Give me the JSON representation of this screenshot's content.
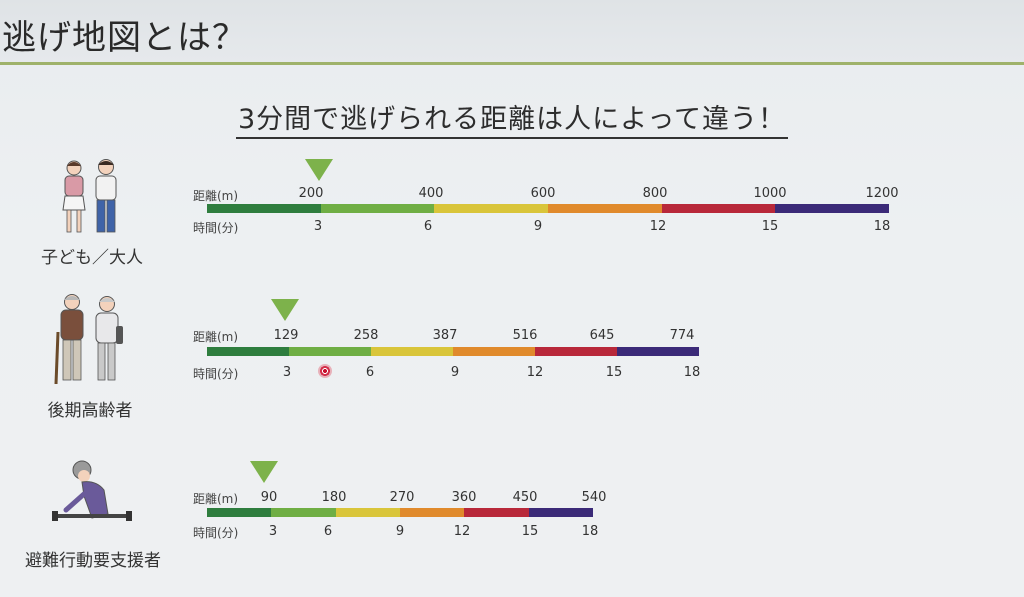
{
  "header": {
    "title": "逃げ地図とは？"
  },
  "subtitle": "3分間で逃げられる距離は人によって違う！",
  "scale_labels": {
    "distance": "距離(m)",
    "time": "時間(分)"
  },
  "segment_colors": [
    "#2e7d3e",
    "#6fae44",
    "#d9c53a",
    "#e08a2c",
    "#b8283a",
    "#3b2a78"
  ],
  "rows": [
    {
      "caption": "子ども／大人",
      "distances": [
        "200",
        "400",
        "600",
        "800",
        "1000",
        "1200"
      ],
      "times": [
        "3",
        "6",
        "9",
        "12",
        "15",
        "18"
      ]
    },
    {
      "caption": "後期高齢者",
      "distances": [
        "129",
        "258",
        "387",
        "516",
        "645",
        "774"
      ],
      "times": [
        "3",
        "6",
        "9",
        "12",
        "15",
        "18"
      ]
    },
    {
      "caption": "避難行動要支援者",
      "distances": [
        "90",
        "180",
        "270",
        "360",
        "450",
        "540"
      ],
      "times": [
        "3",
        "6",
        "9",
        "12",
        "15",
        "18"
      ]
    }
  ]
}
